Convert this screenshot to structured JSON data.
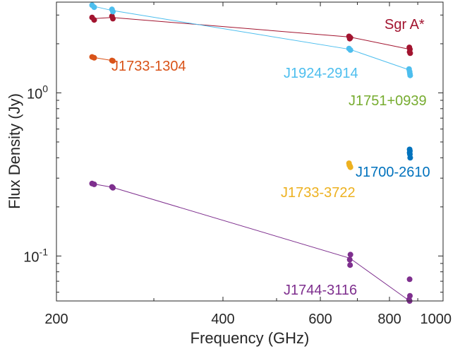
{
  "chart_data": {
    "type": "scatter",
    "title": "",
    "xlabel": "Frequency (GHz)",
    "ylabel": "Flux Density (Jy)",
    "x_scale": "log",
    "y_scale": "log",
    "xlim": [
      200,
      1000
    ],
    "ylim": [
      0.053,
      3.6
    ],
    "x_ticks": [
      {
        "value": 200,
        "label": "200"
      },
      {
        "value": 400,
        "label": "400"
      },
      {
        "value": 600,
        "label": "600"
      },
      {
        "value": 800,
        "label": "800"
      },
      {
        "value": 1000,
        "label": "1000"
      }
    ],
    "y_ticks": [
      {
        "value": 0.1,
        "base": "10",
        "exp": "-1"
      },
      {
        "value": 1,
        "base": "10",
        "exp": "0"
      }
    ],
    "grid": false,
    "series": [
      {
        "name": "Sgr A*",
        "color": "#a2142f",
        "line": [
          [
            233,
            2.85
          ],
          [
            252,
            2.9
          ],
          [
            678,
            2.2
          ],
          [
            870,
            1.85
          ]
        ],
        "points": [
          [
            232,
            2.9
          ],
          [
            234,
            2.8
          ],
          [
            252,
            2.95
          ],
          [
            253,
            2.85
          ],
          [
            676,
            2.22
          ],
          [
            680,
            2.18
          ],
          [
            678,
            2.15
          ],
          [
            869,
            1.9
          ],
          [
            871,
            1.85
          ],
          [
            870,
            1.78
          ],
          [
            872,
            1.75
          ]
        ]
      },
      {
        "name": "J1924-2914",
        "color": "#4dbeee",
        "line": [
          [
            233,
            3.4
          ],
          [
            252,
            3.2
          ],
          [
            678,
            1.85
          ],
          [
            870,
            1.38
          ]
        ],
        "points": [
          [
            232,
            3.45
          ],
          [
            234,
            3.35
          ],
          [
            252,
            3.25
          ],
          [
            253,
            3.15
          ],
          [
            676,
            1.87
          ],
          [
            680,
            1.83
          ],
          [
            868,
            1.4
          ],
          [
            870,
            1.35
          ],
          [
            871,
            1.31
          ],
          [
            872,
            1.28
          ]
        ]
      },
      {
        "name": "J1733-1304",
        "color": "#d95319",
        "line": [
          [
            233,
            1.65
          ],
          [
            252,
            1.58
          ]
        ],
        "points": [
          [
            232,
            1.66
          ],
          [
            234,
            1.64
          ],
          [
            252,
            1.58
          ],
          [
            253,
            1.57
          ]
        ]
      },
      {
        "name": "J1751+0939",
        "color": "#77ac30",
        "line": [],
        "points": []
      },
      {
        "name": "J1700-2610",
        "color": "#0072bd",
        "line": [],
        "points": [
          [
            870,
            0.45
          ],
          [
            871,
            0.44
          ],
          [
            870,
            0.43
          ],
          [
            871,
            0.42
          ],
          [
            872,
            0.4
          ]
        ]
      },
      {
        "name": "J1733-3722",
        "color": "#edb120",
        "line": [],
        "points": [
          [
            676,
            0.37
          ],
          [
            677,
            0.36
          ],
          [
            679,
            0.355
          ],
          [
            680,
            0.35
          ]
        ]
      },
      {
        "name": "J1744-3116",
        "color": "#7e2f8e",
        "line": [
          [
            233,
            0.277
          ],
          [
            252,
            0.264
          ],
          [
            678,
            0.097
          ],
          [
            870,
            0.053
          ]
        ],
        "points": [
          [
            232,
            0.278
          ],
          [
            234,
            0.275
          ],
          [
            252,
            0.265
          ],
          [
            253,
            0.262
          ],
          [
            680,
            0.102
          ],
          [
            678,
            0.095
          ],
          [
            679,
            0.088
          ],
          [
            870,
            0.072
          ],
          [
            871,
            0.057
          ],
          [
            868,
            0.054
          ],
          [
            870,
            0.053
          ]
        ]
      }
    ],
    "annotations": [
      {
        "text": "Sgr A*",
        "color": "#a2142f"
      },
      {
        "text": "J1733-1304",
        "color": "#d95319"
      },
      {
        "text": "J1924-2914",
        "color": "#4dbeee"
      },
      {
        "text": "J1751+0939",
        "color": "#77ac30"
      },
      {
        "text": "J1700-2610",
        "color": "#0072bd"
      },
      {
        "text": "J1733-3722",
        "color": "#edb120"
      },
      {
        "text": "J1744-3116",
        "color": "#7e2f8e"
      }
    ]
  }
}
